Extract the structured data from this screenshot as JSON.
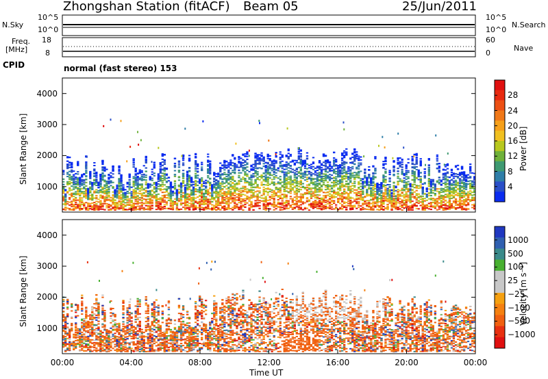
{
  "header": {
    "station": "Zhongshan Station (fitACF)",
    "beam": "Beam 05",
    "date": "25/Jun/2011"
  },
  "top_panels": {
    "nsky_label": "N.Sky",
    "nsky_ticks": [
      "10^5",
      "10^0"
    ],
    "nsearch_label": "N.Search",
    "nsearch_ticks": [
      "10^5",
      "10^0"
    ],
    "freq_label_1": "Freq.",
    "freq_label_2": "[MHz]",
    "freq_ticks": [
      "18",
      "8"
    ],
    "nave_label": "Nave",
    "nave_ticks": [
      "60",
      "0"
    ],
    "cpid_label": "CPID",
    "cpid_text": "normal (fast stereo) 153"
  },
  "chart_data": [
    {
      "type": "heatmap",
      "name": "power",
      "ylabel": "Slant Range [km]",
      "xlabel": "Time UT",
      "xticks": [
        "00:00",
        "04:00",
        "08:00",
        "12:00",
        "16:00",
        "20:00",
        "00:00"
      ],
      "ylim": [
        180,
        4500
      ],
      "yticks": [
        1000,
        2000,
        3000,
        4000
      ],
      "colorbar_label": "Power [dB]",
      "colorbar_ticks": [
        "4",
        "8",
        "12",
        "16",
        "20",
        "24",
        "28"
      ],
      "colorbar_colors": [
        "#0a2cf0",
        "#2a4fc8",
        "#2f7ea8",
        "#3f9a72",
        "#6fb13a",
        "#b8c81e",
        "#f0c020",
        "#f6a01a",
        "#f07818",
        "#ec5014",
        "#e82a10",
        "#e01010"
      ]
    },
    {
      "type": "heatmap",
      "name": "velocity",
      "ylabel": "Slant Range [km]",
      "xlabel": "Time UT",
      "xticks": [
        "00:00",
        "04:00",
        "08:00",
        "12:00",
        "16:00",
        "20:00",
        "00:00"
      ],
      "ylim": [
        180,
        4500
      ],
      "yticks": [
        1000,
        2000,
        3000,
        4000
      ],
      "colorbar_label": "Velocity [m s⁻¹]",
      "colorbar_ticks": [
        "1000",
        "500",
        "100",
        "25",
        "−25",
        "−100",
        "−500",
        "−1000"
      ],
      "colorbar_colors": [
        "#2038c0",
        "#3060b0",
        "#3a8a8a",
        "#48b030",
        "#c8c8c8",
        "#c8c8c8",
        "#f5a010",
        "#f58010",
        "#f06010",
        "#e83010",
        "#e01010"
      ]
    }
  ]
}
